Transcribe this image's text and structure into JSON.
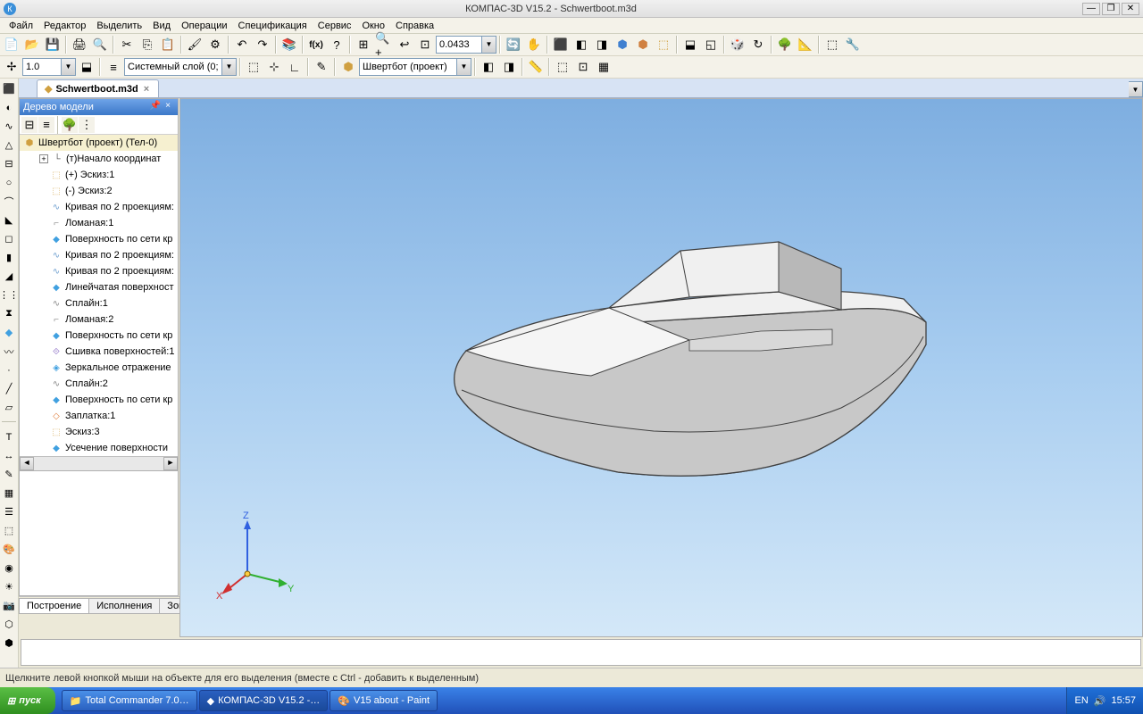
{
  "title": "КОМПАС-3D V15.2  -  Schwertboot.m3d",
  "window_buttons": {
    "min": "—",
    "max": "❐",
    "close": "✕"
  },
  "menu": [
    "Файл",
    "Редактор",
    "Выделить",
    "Вид",
    "Операции",
    "Спецификация",
    "Сервис",
    "Окно",
    "Справка"
  ],
  "toolbar1_zoom_value": "0.0433",
  "toolbar2": {
    "scale_value": "1.0",
    "layer_label": "Системный слой (0;",
    "part_label": "Швертбот (проект)"
  },
  "doc_tab": {
    "icon": "◆",
    "label": "Schwertboot.m3d"
  },
  "tree": {
    "title": "Дерево модели",
    "root": "Швертбот (проект) (Тел-0)",
    "nodes": [
      {
        "indent": 18,
        "exp": "+",
        "icon": "└",
        "label": "(т)Начало координат",
        "color": "#555"
      },
      {
        "indent": 30,
        "icon": "⬚",
        "label": "(+) Эскиз:1",
        "iconbg": "#d8b060"
      },
      {
        "indent": 30,
        "icon": "⬚",
        "label": "(-) Эскиз:2",
        "iconbg": "#d8b060"
      },
      {
        "indent": 30,
        "icon": "∿",
        "label": "Кривая по 2 проекциям:",
        "iconbg": "#70a0d0"
      },
      {
        "indent": 30,
        "icon": "⌐",
        "label": "Ломаная:1",
        "iconbg": "#888"
      },
      {
        "indent": 30,
        "icon": "◆",
        "label": "Поверхность по сети кр",
        "iconbg": "#40a0e0"
      },
      {
        "indent": 30,
        "icon": "∿",
        "label": "Кривая по 2 проекциям:",
        "iconbg": "#70a0d0"
      },
      {
        "indent": 30,
        "icon": "∿",
        "label": "Кривая по 2 проекциям:",
        "iconbg": "#70a0d0"
      },
      {
        "indent": 30,
        "icon": "◆",
        "label": "Линейчатая поверхност",
        "iconbg": "#40a0e0"
      },
      {
        "indent": 30,
        "icon": "∿",
        "label": "Сплайн:1",
        "iconbg": "#888"
      },
      {
        "indent": 30,
        "icon": "⌐",
        "label": "Ломаная:2",
        "iconbg": "#888"
      },
      {
        "indent": 30,
        "icon": "◆",
        "label": "Поверхность по сети кр",
        "iconbg": "#40a0e0"
      },
      {
        "indent": 30,
        "icon": "⟐",
        "label": "Сшивка поверхностей:1",
        "iconbg": "#8060c0"
      },
      {
        "indent": 30,
        "icon": "◈",
        "label": "Зеркальное отражение",
        "iconbg": "#40a0e0"
      },
      {
        "indent": 30,
        "icon": "∿",
        "label": "Сплайн:2",
        "iconbg": "#888"
      },
      {
        "indent": 30,
        "icon": "◆",
        "label": "Поверхность по сети кр",
        "iconbg": "#40a0e0"
      },
      {
        "indent": 30,
        "icon": "◇",
        "label": "Заплатка:1",
        "iconbg": "#e08040"
      },
      {
        "indent": 30,
        "icon": "⬚",
        "label": "Эскиз:3",
        "iconbg": "#d8b060"
      },
      {
        "indent": 30,
        "icon": "◆",
        "label": "Усечение поверхности",
        "iconbg": "#40a0e0"
      }
    ],
    "bottom_tabs": [
      "Построение",
      "Исполнения",
      "Зоны"
    ]
  },
  "axes_labels": {
    "x": "X",
    "y": "Y",
    "z": "Z"
  },
  "statusbar": "Щелкните левой кнопкой мыши на объекте для его выделения (вместе с Ctrl - добавить к выделенным)",
  "taskbar": {
    "start": "пуск",
    "items": [
      "Total Commander 7.0…",
      "КОМПАС-3D V15.2 -…",
      "V15 about - Paint"
    ],
    "lang": "EN",
    "clock": "15:57"
  },
  "colors": {
    "title_bg": "#e8e8e8",
    "viewport_top": "#7eaee0",
    "viewport_bot": "#d4e8f8",
    "boat_light": "#f0f0f0",
    "boat_mid": "#c8c8c8",
    "boat_dark": "#9a9a9a",
    "boat_stroke": "#404040"
  }
}
